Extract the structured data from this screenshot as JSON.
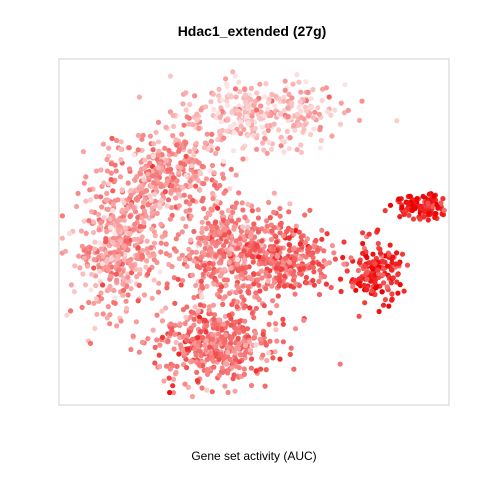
{
  "chart_data": {
    "type": "scatter",
    "title": "Hdac1_extended (27g)",
    "xlabel": "Gene set activity (AUC)",
    "ylabel": "",
    "axes_visible": false,
    "tick_labels_visible": false,
    "grid": false,
    "legend": "none",
    "color_scale": {
      "low": "#fde4e4",
      "high": "#ee0000",
      "meaning": "Gene set activity (AUC)"
    },
    "clusters": [
      {
        "id": "top-right",
        "center": [
          -2.0,
          8.5
        ],
        "spread": [
          2.7,
          1.3
        ],
        "n": 330,
        "auc_level": 0.18
      },
      {
        "id": "upper-left",
        "center": [
          -6.5,
          5.2
        ],
        "spread": [
          1.8,
          1.6
        ],
        "n": 300,
        "auc_level": 0.34
      },
      {
        "id": "left",
        "center": [
          -8.8,
          1.0
        ],
        "spread": [
          1.5,
          2.5
        ],
        "n": 480,
        "auc_level": 0.32
      },
      {
        "id": "center",
        "center": [
          -3.5,
          0.5
        ],
        "spread": [
          1.6,
          2.2
        ],
        "n": 430,
        "auc_level": 0.42
      },
      {
        "id": "center-right",
        "center": [
          -0.5,
          0.2
        ],
        "spread": [
          1.4,
          1.5
        ],
        "n": 260,
        "auc_level": 0.55
      },
      {
        "id": "bottom",
        "center": [
          -4.2,
          -4.8
        ],
        "spread": [
          1.9,
          1.5
        ],
        "n": 420,
        "auc_level": 0.48
      },
      {
        "id": "right-mid",
        "center": [
          3.6,
          -0.6
        ],
        "spread": [
          0.8,
          1.2
        ],
        "n": 170,
        "auc_level": 0.78
      },
      {
        "id": "far-right",
        "center": [
          5.8,
          3.2
        ],
        "spread": [
          0.9,
          0.45
        ],
        "n": 120,
        "auc_level": 0.9
      }
    ],
    "xlim": [
      -11.5,
      7.0
    ],
    "ylim": [
      -8.0,
      11.5
    ]
  }
}
